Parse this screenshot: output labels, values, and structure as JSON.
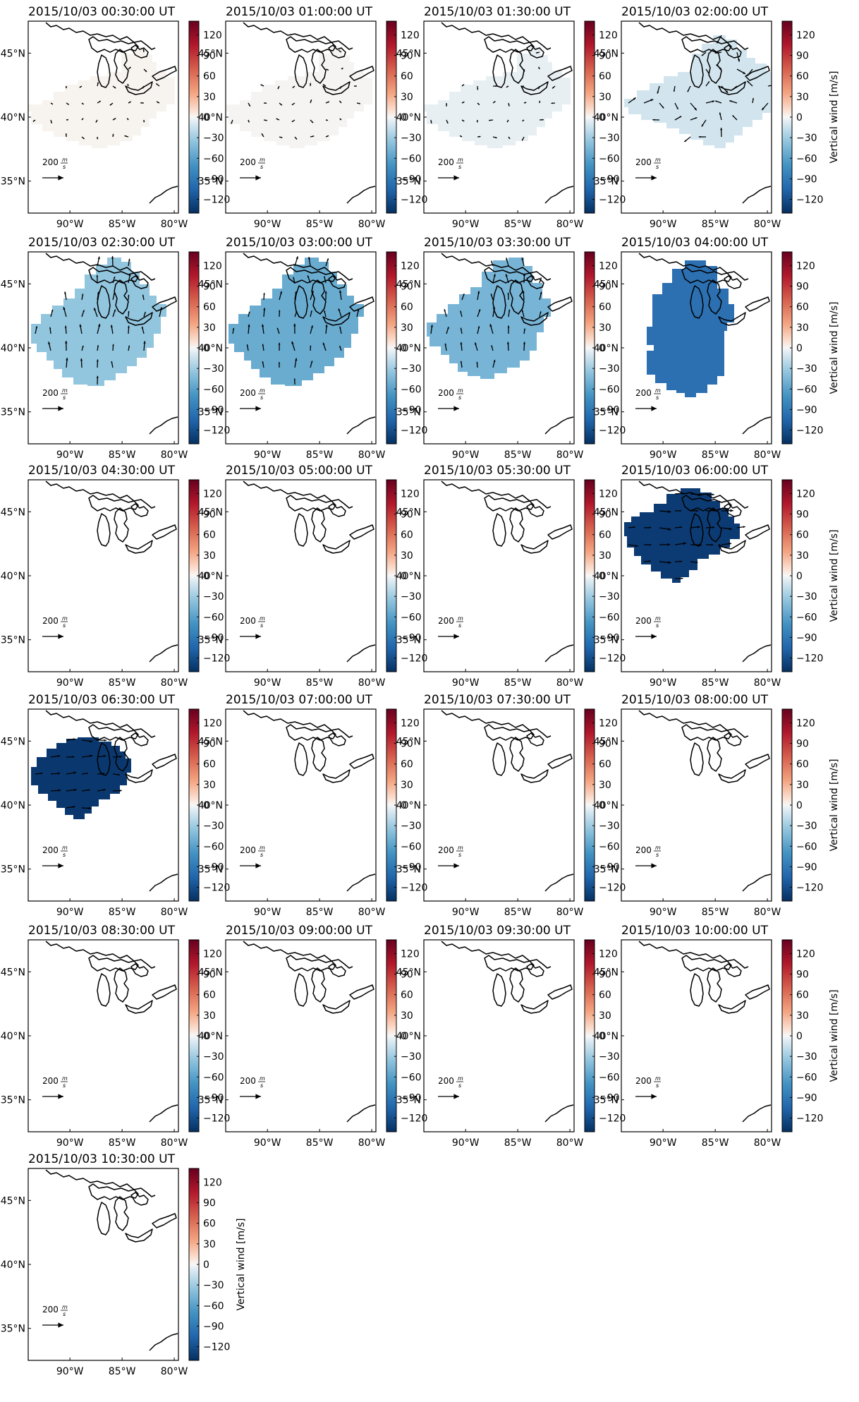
{
  "figure": {
    "colorbar_label": "Vertical wind [m/s]",
    "colorbar_ticks": [
      "120",
      "90",
      "60",
      "30",
      "0",
      "−30",
      "−60",
      "−90",
      "−120"
    ],
    "lat_ticks": [
      "45°N",
      "40°N",
      "35°N"
    ],
    "lon_ticks": [
      "90°W",
      "85°W",
      "80°W"
    ],
    "arrow_scale_label": "200",
    "arrow_scale_unit_num": "m",
    "arrow_scale_unit_den": "s"
  },
  "colors": {
    "scale_top": "#67001f",
    "scale_mid": "#f7f7f7",
    "scale_bottom": "#053061"
  },
  "chart_data": {
    "type": "heatmap",
    "colorbar_range": [
      -140,
      140
    ],
    "lat_ticks_values": [
      45,
      40,
      35
    ],
    "lon_ticks_values": [
      -90,
      -85,
      -80
    ],
    "panels": [
      {
        "title": "2015/10/03 00:30:00 UT",
        "wind_color": "#f7f3ef",
        "coverage": "region-a",
        "arrows": "small-mixed"
      },
      {
        "title": "2015/10/03 01:00:00 UT",
        "wind_color": "#f5f4f3",
        "coverage": "region-a",
        "arrows": "small-mixed"
      },
      {
        "title": "2015/10/03 01:30:00 UT",
        "wind_color": "#e8eff3",
        "coverage": "region-a",
        "arrows": "small-mixed"
      },
      {
        "title": "2015/10/03 02:00:00 UT",
        "wind_color": "#d2e5ef",
        "coverage": "region-b",
        "arrows": "mixed"
      },
      {
        "title": "2015/10/03 02:30:00 UT",
        "wind_color": "#92c5de",
        "coverage": "region-c",
        "arrows": "northward"
      },
      {
        "title": "2015/10/03 03:00:00 UT",
        "wind_color": "#6aacd0",
        "coverage": "region-c",
        "arrows": "northward"
      },
      {
        "title": "2015/10/03 03:30:00 UT",
        "wind_color": "#78b4d6",
        "coverage": "region-d",
        "arrows": "northward"
      },
      {
        "title": "2015/10/03 04:00:00 UT",
        "wind_color": "#2c70b1",
        "coverage": "region-e",
        "arrows": "none"
      },
      {
        "title": "2015/10/03 04:30:00 UT",
        "wind_color": "",
        "coverage": "none",
        "arrows": "none"
      },
      {
        "title": "2015/10/03 05:00:00 UT",
        "wind_color": "",
        "coverage": "none",
        "arrows": "none"
      },
      {
        "title": "2015/10/03 05:30:00 UT",
        "wind_color": "",
        "coverage": "none",
        "arrows": "none"
      },
      {
        "title": "2015/10/03 06:00:00 UT",
        "wind_color": "#0c3a72",
        "coverage": "region-f",
        "arrows": "eastward"
      },
      {
        "title": "2015/10/03 06:30:00 UT",
        "wind_color": "#0a386e",
        "coverage": "region-g",
        "arrows": "eastward"
      },
      {
        "title": "2015/10/03 07:00:00 UT",
        "wind_color": "",
        "coverage": "none",
        "arrows": "none"
      },
      {
        "title": "2015/10/03 07:30:00 UT",
        "wind_color": "",
        "coverage": "none",
        "arrows": "none"
      },
      {
        "title": "2015/10/03 08:00:00 UT",
        "wind_color": "",
        "coverage": "none",
        "arrows": "none"
      },
      {
        "title": "2015/10/03 08:30:00 UT",
        "wind_color": "",
        "coverage": "none",
        "arrows": "none"
      },
      {
        "title": "2015/10/03 09:00:00 UT",
        "wind_color": "",
        "coverage": "none",
        "arrows": "none"
      },
      {
        "title": "2015/10/03 09:30:00 UT",
        "wind_color": "",
        "coverage": "none",
        "arrows": "none"
      },
      {
        "title": "2015/10/03 10:00:00 UT",
        "wind_color": "",
        "coverage": "none",
        "arrows": "none"
      },
      {
        "title": "2015/10/03 10:30:00 UT",
        "wind_color": "",
        "coverage": "none",
        "arrows": "none"
      }
    ]
  }
}
